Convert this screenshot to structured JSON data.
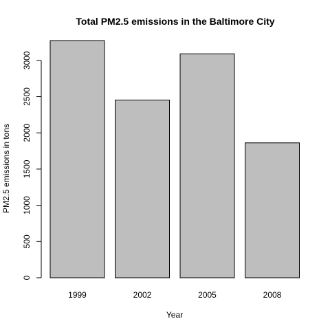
{
  "chart_data": {
    "type": "bar",
    "title": "Total PM2.5 emissions in the Baltimore City",
    "xlabel": "Year",
    "ylabel": "PM2.5 emissions in tons",
    "categories": [
      "1999",
      "2002",
      "2005",
      "2008"
    ],
    "values": [
      3274,
      2453,
      3091,
      1862
    ],
    "ylim": [
      0,
      3274
    ],
    "yticks": [
      0,
      500,
      1000,
      1500,
      2000,
      2500,
      3000
    ],
    "bar_color": "#bebebe",
    "grid": false,
    "legend": "none"
  }
}
